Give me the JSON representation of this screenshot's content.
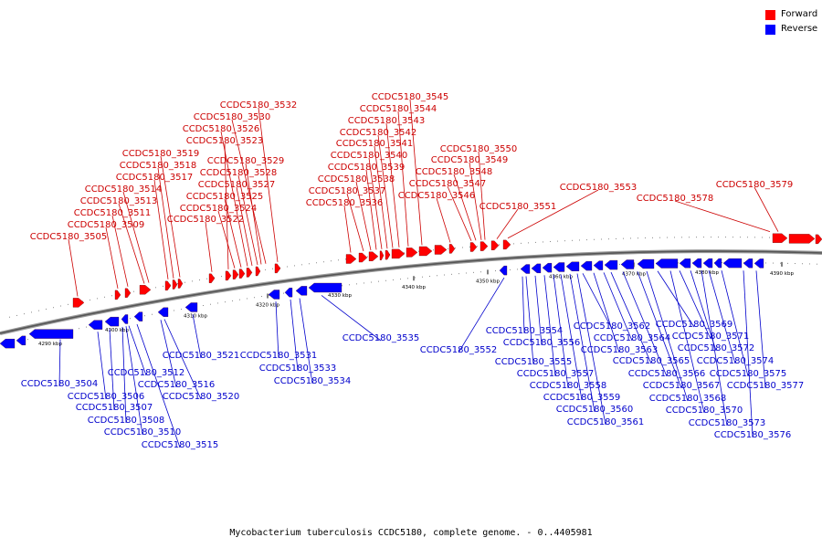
{
  "legend": {
    "forward": {
      "label": "Forward",
      "color": "#ff0000"
    },
    "reverse": {
      "label": "Reverse",
      "color": "#0000ff"
    }
  },
  "caption": "Mycobacterium tuberculosis CCDC5180, complete genome. - 0..4405981",
  "ticks": [
    "4290 kbp",
    "4300 kbp",
    "4310 kbp",
    "4320 kbp",
    "4330 kbp",
    "4340 kbp",
    "4350 kbp",
    "4360 kbp",
    "4370 kbp",
    "4380 kbp",
    "4390 kbp"
  ],
  "forward_genes": [
    "CCDC5180_3505",
    "CCDC5180_3509",
    "CCDC5180_3511",
    "CCDC5180_3513",
    "CCDC5180_3514",
    "CCDC5180_3517",
    "CCDC5180_3518",
    "CCDC5180_3519",
    "CCDC5180_3522",
    "CCDC5180_3523",
    "CCDC5180_3524",
    "CCDC5180_3525",
    "CCDC5180_3526",
    "CCDC5180_3527",
    "CCDC5180_3528",
    "CCDC5180_3529",
    "CCDC5180_3530",
    "CCDC5180_3532",
    "CCDC5180_3536",
    "CCDC5180_3537",
    "CCDC5180_3538",
    "CCDC5180_3539",
    "CCDC5180_3540",
    "CCDC5180_3541",
    "CCDC5180_3542",
    "CCDC5180_3543",
    "CCDC5180_3544",
    "CCDC5180_3545",
    "CCDC5180_3546",
    "CCDC5180_3547",
    "CCDC5180_3548",
    "CCDC5180_3549",
    "CCDC5180_3550",
    "CCDC5180_3551",
    "CCDC5180_3553",
    "CCDC5180_3578",
    "CCDC5180_3579"
  ],
  "reverse_genes": [
    "CCDC5180_3504",
    "CCDC5180_3506",
    "CCDC5180_3507",
    "CCDC5180_3508",
    "CCDC5180_3510",
    "CCDC5180_3512",
    "CCDC5180_3515",
    "CCDC5180_3516",
    "CCDC5180_3520",
    "CCDC5180_3521",
    "CCDC5180_3531",
    "CCDC5180_3533",
    "CCDC5180_3534",
    "CCDC5180_3535",
    "CCDC5180_3552",
    "CCDC5180_3554",
    "CCDC5180_3555",
    "CCDC5180_3556",
    "CCDC5180_3557",
    "CCDC5180_3558",
    "CCDC5180_3559",
    "CCDC5180_3560",
    "CCDC5180_3561",
    "CCDC5180_3562",
    "CCDC5180_3563",
    "CCDC5180_3564",
    "CCDC5180_3565",
    "CCDC5180_3566",
    "CCDC5180_3567",
    "CCDC5180_3568",
    "CCDC5180_3569",
    "CCDC5180_3570",
    "CCDC5180_3571",
    "CCDC5180_3572",
    "CCDC5180_3573",
    "CCDC5180_3574",
    "CCDC5180_3575",
    "CCDC5180_3576",
    "CCDC5180_3577"
  ]
}
